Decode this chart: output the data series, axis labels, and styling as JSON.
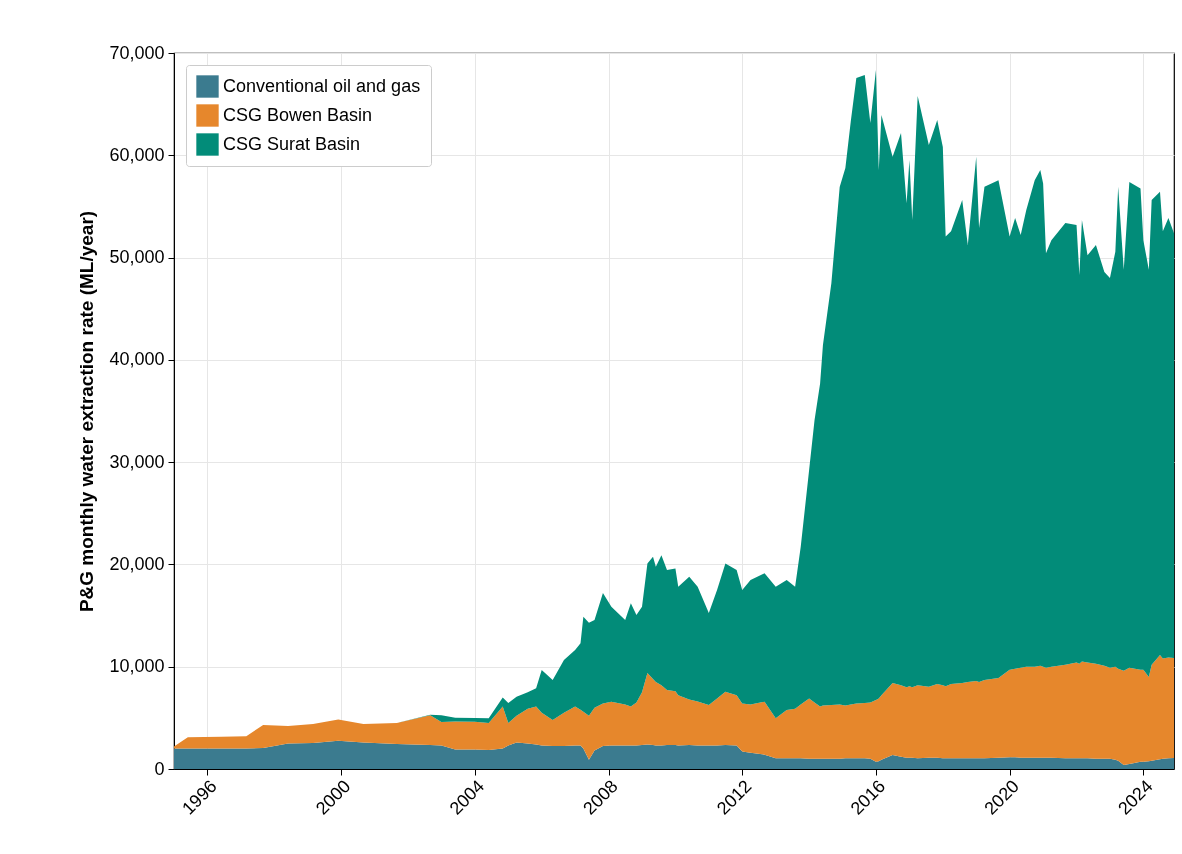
{
  "chart_data": {
    "type": "area",
    "ylabel": "P&G monthly water extraction rate (ML/year)",
    "stacked": true,
    "grid": true,
    "legend": "top left",
    "xlim": [
      "1995-01",
      "2024-12"
    ],
    "xticks": [
      "1996",
      "2000",
      "2004",
      "2008",
      "2012",
      "2016",
      "2020",
      "2024"
    ],
    "ylim": [
      0,
      70000
    ],
    "yticks": [
      0,
      {
        "value": 10000,
        "label": "10,000"
      },
      {
        "value": 20000,
        "label": "20,000"
      },
      {
        "value": 30000,
        "label": "30,000"
      },
      {
        "value": 40000,
        "label": "40,000"
      },
      {
        "value": 50000,
        "label": "50,000"
      },
      {
        "value": 60000,
        "label": "60,000"
      },
      {
        "value": 70000,
        "label": "70,000"
      }
    ],
    "x": [
      "1995-01",
      "1995-06",
      "1996-06",
      "1997-03",
      "1997-09",
      "1998-06",
      "1999-03",
      "1999-12",
      "2000-09",
      "2001-09",
      "2002-09",
      "2003-01",
      "2003-06",
      "2004-01",
      "2004-06",
      "2004-11",
      "2005-01",
      "2005-04",
      "2005-08",
      "2005-11",
      "2006-01",
      "2006-05",
      "2006-09",
      "2007-01",
      "2007-03",
      "2007-04",
      "2007-06",
      "2007-08",
      "2007-11",
      "2008-02",
      "2008-07",
      "2008-09",
      "2008-11",
      "2009-01",
      "2009-03",
      "2009-05",
      "2009-06",
      "2009-08",
      "2009-10",
      "2010-01",
      "2010-02",
      "2010-06",
      "2010-09",
      "2011-01",
      "2011-04",
      "2011-07",
      "2011-11",
      "2012-01",
      "2012-04",
      "2012-09",
      "2013-01",
      "2013-05",
      "2013-08",
      "2013-10",
      "2014-01",
      "2014-03",
      "2014-05",
      "2014-06",
      "2014-09",
      "2014-12",
      "2015-02",
      "2015-04",
      "2015-06",
      "2015-09",
      "2015-11",
      "2016-01",
      "2016-02",
      "2016-03",
      "2016-07",
      "2016-10",
      "2016-12",
      "2017-01",
      "2017-02",
      "2017-04",
      "2017-08",
      "2017-11",
      "2018-01",
      "2018-02",
      "2018-04",
      "2018-08",
      "2018-10",
      "2019-01",
      "2019-02",
      "2019-04",
      "2019-09",
      "2020-01",
      "2020-03",
      "2020-05",
      "2020-07",
      "2020-10",
      "2020-12",
      "2021-01",
      "2021-02",
      "2021-04",
      "2021-09",
      "2022-01",
      "2022-02",
      "2022-03",
      "2022-05",
      "2022-08",
      "2022-11",
      "2023-01",
      "2023-03",
      "2023-04",
      "2023-06",
      "2023-08",
      "2023-12",
      "2024-01",
      "2024-03",
      "2024-04",
      "2024-07",
      "2024-08",
      "2024-10",
      "2024-12"
    ],
    "series": [
      {
        "name": "Conventional oil and gas",
        "color": "#3b7b8f",
        "values": [
          2000,
          2000,
          2000,
          2000,
          2050,
          2500,
          2550,
          2750,
          2600,
          2450,
          2350,
          2300,
          1900,
          1900,
          1850,
          2000,
          2300,
          2600,
          2500,
          2400,
          2300,
          2250,
          2250,
          2300,
          2300,
          2000,
          900,
          1800,
          2250,
          2300,
          2300,
          2300,
          2300,
          2350,
          2400,
          2350,
          2300,
          2300,
          2350,
          2350,
          2300,
          2350,
          2300,
          2300,
          2300,
          2350,
          2300,
          1700,
          1600,
          1400,
          1050,
          1050,
          1050,
          1050,
          1000,
          1000,
          1000,
          1000,
          1000,
          1000,
          1050,
          1050,
          1050,
          1050,
          1000,
          720,
          750,
          900,
          1370,
          1200,
          1100,
          1100,
          1100,
          1050,
          1100,
          1100,
          1050,
          1050,
          1050,
          1050,
          1050,
          1050,
          1050,
          1050,
          1100,
          1150,
          1150,
          1100,
          1100,
          1100,
          1100,
          1100,
          1100,
          1100,
          1050,
          1050,
          1050,
          1050,
          1050,
          1000,
          1000,
          1000,
          900,
          800,
          400,
          500,
          700,
          700,
          750,
          800,
          950,
          1000,
          1050,
          1070
        ]
      },
      {
        "name": "CSG Bowen Basin",
        "color": "#e6872c",
        "values": [
          200,
          1100,
          1150,
          1200,
          2250,
          1700,
          1850,
          2100,
          1800,
          2050,
          2900,
          2300,
          2750,
          2720,
          2650,
          4100,
          2200,
          2600,
          3400,
          3700,
          3200,
          2550,
          3250,
          3800,
          3500,
          3600,
          4300,
          4200,
          4150,
          4280,
          4000,
          3800,
          4200,
          5150,
          6980,
          6450,
          6200,
          5900,
          5370,
          5250,
          4900,
          4450,
          4300,
          3950,
          4600,
          5210,
          4900,
          4700,
          4700,
          5180,
          3900,
          4720,
          4850,
          5250,
          5900,
          5500,
          5100,
          5200,
          5250,
          5300,
          5150,
          5250,
          5350,
          5400,
          5500,
          6030,
          6150,
          6300,
          7030,
          7000,
          6900,
          7000,
          6900,
          7150,
          6950,
          7200,
          7150,
          7050,
          7250,
          7350,
          7450,
          7550,
          7450,
          7650,
          7800,
          8550,
          8650,
          8800,
          8900,
          8900,
          9000,
          8900,
          8800,
          8900,
          9150,
          9350,
          9250,
          9450,
          9350,
          9300,
          9100,
          8900,
          9100,
          9000,
          9200,
          9400,
          9000,
          9000,
          8250,
          9400,
          10200,
          9800,
          9850,
          9780
        ]
      },
      {
        "name": "CSG Surat Basin",
        "color": "#028c79",
        "values": [
          0,
          0,
          0,
          0,
          0,
          0,
          0,
          0,
          0,
          0,
          50,
          650,
          350,
          360,
          450,
          900,
          1950,
          1870,
          1600,
          1800,
          4180,
          3900,
          5150,
          5530,
          6500,
          9290,
          9100,
          8560,
          10800,
          9280,
          8260,
          10100,
          8550,
          8360,
          10720,
          11950,
          11280,
          12700,
          11730,
          12000,
          10620,
          12000,
          11220,
          8990,
          10600,
          12540,
          12250,
          11100,
          12180,
          12560,
          12870,
          12710,
          11920,
          15400,
          22330,
          27600,
          31600,
          35250,
          41250,
          50600,
          52550,
          57000,
          61150,
          61390,
          56650,
          61580,
          51650,
          56730,
          51460,
          53970,
          47300,
          51430,
          45670,
          57600,
          52950,
          55140,
          52600,
          43960,
          44280,
          47220,
          42720,
          51260,
          44380,
          48220,
          48650,
          42360,
          44060,
          42300,
          44640,
          47550,
          48450,
          47250,
          40520,
          41700,
          43170,
          42780,
          37990,
          43170,
          39830,
          40920,
          38500,
          38100,
          40570,
          47120,
          39200,
          47490,
          47050,
          42000,
          39800,
          45420,
          45280,
          41780,
          42960,
          41530
        ]
      }
    ]
  }
}
